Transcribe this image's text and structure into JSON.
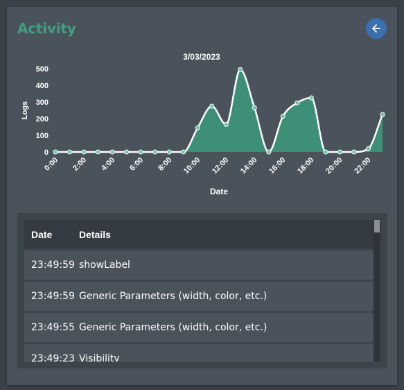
{
  "card": {
    "title": "Activity",
    "back_icon": "arrow-left-icon",
    "accent_color": "#3fa083",
    "button_color": "#3a6fb0"
  },
  "chart_data": {
    "type": "area",
    "title": "3/03/2023",
    "xlabel": "Date",
    "ylabel": "Logs",
    "ylim": [
      0,
      500
    ],
    "yticks": [
      0,
      100,
      200,
      300,
      400,
      500
    ],
    "x_tick_labels": [
      "0:00",
      "2:00",
      "4:00",
      "6:00",
      "8:00",
      "10:00",
      "12:00",
      "14:00",
      "16:00",
      "18:00",
      "20:00",
      "22:00"
    ],
    "x": [
      0,
      1,
      2,
      3,
      4,
      5,
      6,
      7,
      8,
      9,
      10,
      11,
      12,
      13,
      14,
      15,
      16,
      17,
      18,
      19,
      20,
      21,
      22,
      23
    ],
    "series": [
      {
        "values": [
          0,
          0,
          0,
          0,
          0,
          0,
          0,
          0,
          0,
          0,
          145,
          275,
          165,
          495,
          265,
          0,
          215,
          295,
          325,
          0,
          0,
          0,
          20,
          225
        ],
        "color": "#3d8f77",
        "line_color": "#ffffff"
      }
    ],
    "grid": false
  },
  "table": {
    "columns": [
      "Date",
      "Details"
    ],
    "rows": [
      {
        "date": "23:49:59",
        "details": "showLabel"
      },
      {
        "date": "23:49:59",
        "details": "Generic Parameters (width, color, etc.)"
      },
      {
        "date": "23:49:55",
        "details": "Generic Parameters (width, color, etc.)"
      },
      {
        "date": "23:49:23",
        "details": "Visibility"
      }
    ]
  }
}
